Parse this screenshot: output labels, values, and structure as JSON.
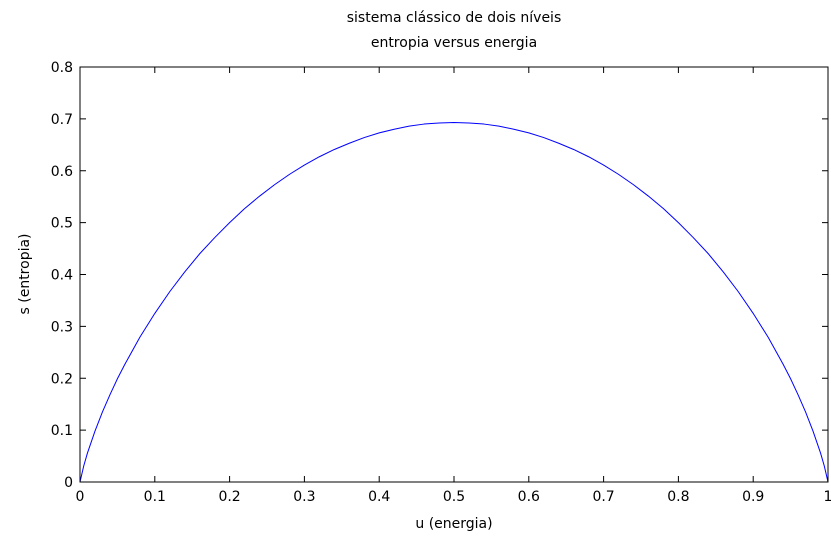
{
  "chart_data": {
    "type": "line",
    "title": [
      "sistema clássico de dois níveis",
      "entropia versus energia"
    ],
    "xlabel": "u (energia)",
    "ylabel": "s (entropia)",
    "xlim": [
      0,
      1
    ],
    "ylim": [
      0,
      0.8
    ],
    "grid": false,
    "x_ticks": [
      0,
      0.1,
      0.2,
      0.3,
      0.4,
      0.5,
      0.6,
      0.7,
      0.8,
      0.9,
      1
    ],
    "x_tick_labels": [
      "0",
      "0.1",
      "0.2",
      "0.3",
      "0.4",
      "0.5",
      "0.6",
      "0.7",
      "0.8",
      "0.9",
      "1"
    ],
    "y_ticks": [
      0,
      0.1,
      0.2,
      0.3,
      0.4,
      0.5,
      0.6,
      0.7,
      0.8
    ],
    "y_tick_labels": [
      "0",
      "0.1",
      "0.2",
      "0.3",
      "0.4",
      "0.5",
      "0.6",
      "0.7",
      "0.8"
    ],
    "series": [
      {
        "color": "#0000ff",
        "x": [
          0,
          0.005,
          0.01,
          0.02,
          0.03,
          0.04,
          0.05,
          0.06,
          0.08,
          0.1,
          0.12,
          0.14,
          0.16,
          0.18,
          0.2,
          0.22,
          0.24,
          0.26,
          0.28,
          0.3,
          0.32,
          0.34,
          0.36,
          0.38,
          0.4,
          0.42,
          0.44,
          0.46,
          0.48,
          0.5,
          0.52,
          0.54,
          0.56,
          0.58,
          0.6,
          0.62,
          0.64,
          0.66,
          0.68,
          0.7,
          0.72,
          0.74,
          0.76,
          0.78,
          0.8,
          0.82,
          0.84,
          0.86,
          0.88,
          0.9,
          0.92,
          0.94,
          0.95,
          0.96,
          0.97,
          0.98,
          0.99,
          0.995,
          1
        ],
        "y": [
          0,
          0.031,
          0.056,
          0.098,
          0.135,
          0.168,
          0.199,
          0.227,
          0.279,
          0.325,
          0.367,
          0.405,
          0.44,
          0.471,
          0.5,
          0.527,
          0.551,
          0.573,
          0.593,
          0.611,
          0.627,
          0.641,
          0.653,
          0.664,
          0.673,
          0.68,
          0.686,
          0.69,
          0.692,
          0.693,
          0.692,
          0.69,
          0.686,
          0.68,
          0.673,
          0.664,
          0.653,
          0.641,
          0.627,
          0.611,
          0.593,
          0.573,
          0.551,
          0.527,
          0.5,
          0.471,
          0.44,
          0.405,
          0.367,
          0.325,
          0.279,
          0.227,
          0.199,
          0.168,
          0.135,
          0.098,
          0.056,
          0.031,
          0
        ]
      }
    ]
  }
}
